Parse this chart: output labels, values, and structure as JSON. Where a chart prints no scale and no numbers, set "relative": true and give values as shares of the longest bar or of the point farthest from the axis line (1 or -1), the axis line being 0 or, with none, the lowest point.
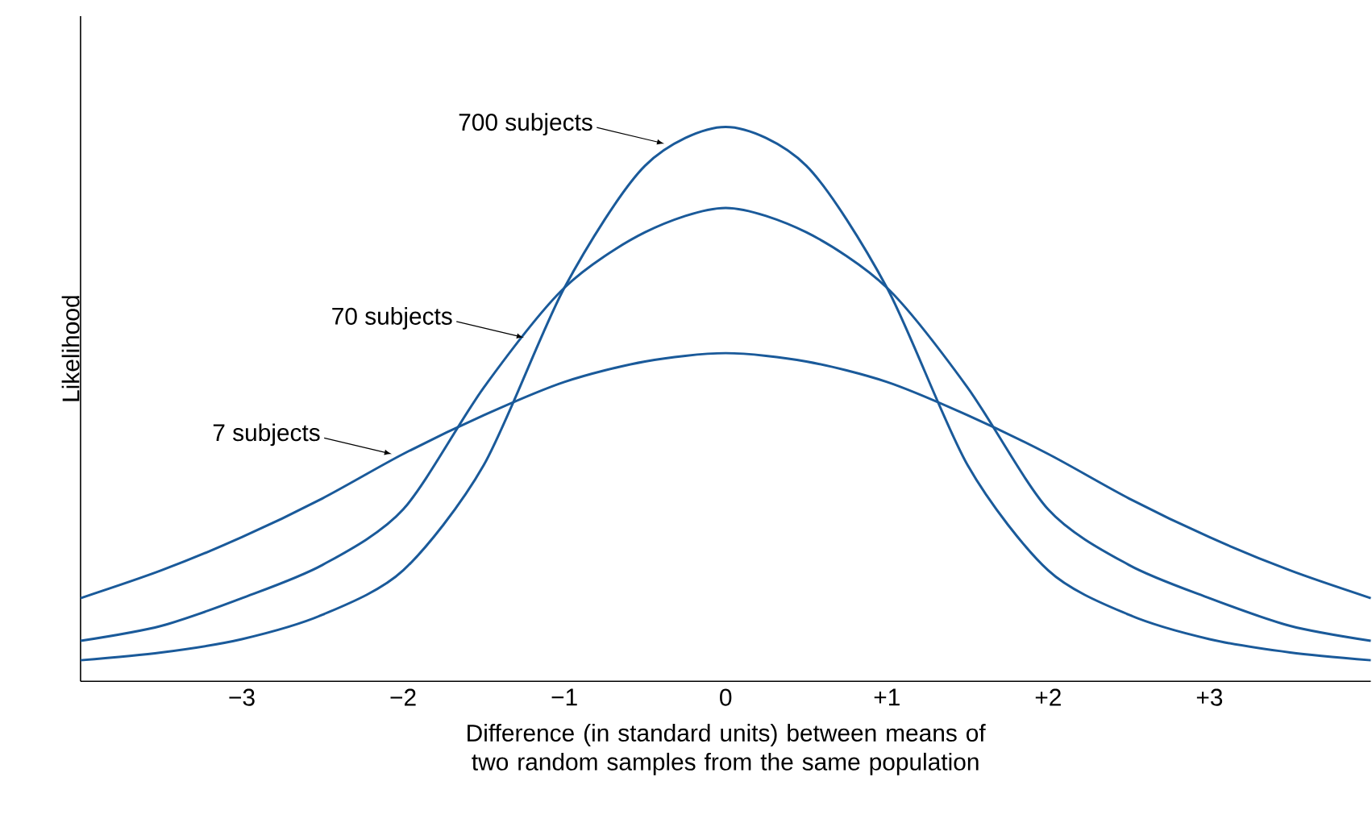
{
  "chart_data": {
    "type": "line",
    "relative": true,
    "xlabel": "Difference (in standard units) between means of two random samples from the same population",
    "ylabel": "Likelihood",
    "x": [
      -4,
      -3.5,
      -3,
      -2.5,
      -2,
      -1.5,
      -1,
      -0.5,
      0,
      0.5,
      1,
      1.5,
      2,
      2.5,
      3,
      3.5,
      4
    ],
    "xlim": [
      -4,
      4
    ],
    "xticks": [
      {
        "value": -3,
        "label": "−3"
      },
      {
        "value": -2,
        "label": "−2"
      },
      {
        "value": -1,
        "label": "−1"
      },
      0,
      {
        "value": 1,
        "label": "+1"
      },
      {
        "value": 2,
        "label": "+2"
      },
      {
        "value": 3,
        "label": "+3"
      }
    ],
    "series": [
      {
        "color": "#1a5a9a",
        "values": [
          0.038,
          0.052,
          0.076,
          0.12,
          0.2,
          0.39,
          0.71,
          0.93,
          1.0,
          0.93,
          0.71,
          0.39,
          0.2,
          0.12,
          0.076,
          0.052,
          0.038
        ]
      },
      {
        "color": "#1a5a9a",
        "values": [
          0.073,
          0.1,
          0.15,
          0.21,
          0.31,
          0.53,
          0.71,
          0.81,
          0.854,
          0.81,
          0.71,
          0.53,
          0.31,
          0.21,
          0.15,
          0.1,
          0.073
        ]
      },
      {
        "color": "#1a5a9a",
        "values": [
          0.15,
          0.2,
          0.26,
          0.33,
          0.41,
          0.48,
          0.54,
          0.577,
          0.592,
          0.577,
          0.54,
          0.48,
          0.41,
          0.33,
          0.26,
          0.2,
          0.15
        ]
      }
    ],
    "annotations": [
      {
        "text": "700 subjects",
        "x": -0.38,
        "y": 0.97
      },
      {
        "text": "70 subjects",
        "x": -1.25,
        "y": 0.62
      },
      {
        "text": "7 subjects",
        "x": -2.07,
        "y": 0.41
      }
    ],
    "grid": false,
    "marker": "none",
    "line_style": "solid"
  }
}
